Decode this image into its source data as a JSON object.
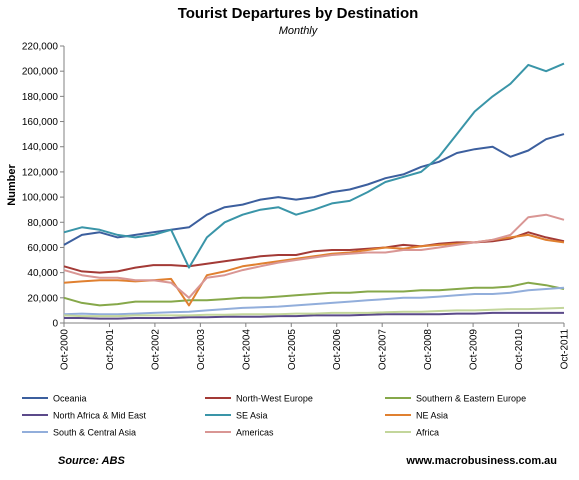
{
  "chart_data": {
    "type": "line",
    "title": "Tourist Departures by Destination",
    "subtitle": "Monthly",
    "ylabel": "Number",
    "xlabel": "",
    "ylim": [
      0,
      220000
    ],
    "y_ticks": [
      "0",
      "20,000",
      "40,000",
      "60,000",
      "80,000",
      "100,000",
      "120,000",
      "140,000",
      "160,000",
      "180,000",
      "200,000",
      "220,000"
    ],
    "x_ticks": [
      "Oct-2000",
      "Oct-2001",
      "Oct-2002",
      "Oct-2003",
      "Oct-2004",
      "Oct-2005",
      "Oct-2006",
      "Oct-2007",
      "Oct-2008",
      "Oct-2009",
      "Oct-2010",
      "Oct-2011"
    ],
    "x_start": "Oct-2000",
    "x_step": "quarter",
    "legend_position": "bottom",
    "grid": false,
    "series": [
      {
        "name": "Oceania",
        "color": "#3c5f9e",
        "values": [
          62000,
          70000,
          72000,
          68000,
          70000,
          72000,
          74000,
          76000,
          86000,
          92000,
          94000,
          98000,
          100000,
          98000,
          100000,
          104000,
          106000,
          110000,
          115000,
          118000,
          124000,
          128000,
          135000,
          138000,
          140000,
          132000,
          137000,
          146000,
          150000
        ]
      },
      {
        "name": "North-West Europe",
        "color": "#a33a36",
        "values": [
          45000,
          41000,
          40000,
          41000,
          44000,
          46000,
          46000,
          45000,
          47000,
          49000,
          51000,
          53000,
          54000,
          54000,
          57000,
          58000,
          58000,
          59000,
          60000,
          62000,
          61000,
          63000,
          64000,
          64000,
          65000,
          67000,
          72000,
          68000,
          65000
        ]
      },
      {
        "name": "Southern & Eastern Europe",
        "color": "#86a84a",
        "values": [
          20000,
          16000,
          14000,
          15000,
          17000,
          17000,
          17000,
          18000,
          18000,
          19000,
          20000,
          20000,
          21000,
          22000,
          23000,
          24000,
          24000,
          25000,
          25000,
          25000,
          26000,
          26000,
          27000,
          28000,
          28000,
          29000,
          32000,
          30000,
          27000
        ]
      },
      {
        "name": "North Africa & Mid East",
        "color": "#5b4a8a",
        "values": [
          4000,
          4000,
          3500,
          3500,
          4000,
          4000,
          4000,
          4500,
          4500,
          5000,
          5000,
          5000,
          5500,
          5500,
          6000,
          6000,
          6000,
          6500,
          7000,
          7000,
          7000,
          7000,
          7500,
          7500,
          8000,
          8000,
          8000,
          8000,
          8000
        ]
      },
      {
        "name": "SE Asia",
        "color": "#3a95a8",
        "values": [
          72000,
          76000,
          74000,
          70000,
          68000,
          70000,
          74000,
          44000,
          68000,
          80000,
          86000,
          90000,
          92000,
          86000,
          90000,
          95000,
          97000,
          104000,
          112000,
          116000,
          120000,
          132000,
          150000,
          168000,
          180000,
          190000,
          205000,
          200000,
          206000
        ]
      },
      {
        "name": "NE Asia",
        "color": "#e08030",
        "values": [
          32000,
          33000,
          34000,
          34000,
          33000,
          34000,
          35000,
          14000,
          38000,
          41000,
          45000,
          47000,
          49000,
          51000,
          53000,
          55000,
          56000,
          58000,
          60000,
          59000,
          61000,
          62000,
          63000,
          64000,
          66000,
          68000,
          70000,
          66000,
          64000
        ]
      },
      {
        "name": "South & Central Asia",
        "color": "#92aedb",
        "values": [
          7000,
          7500,
          7000,
          7000,
          7500,
          8000,
          8500,
          9000,
          10000,
          11000,
          12000,
          12500,
          13000,
          14000,
          15000,
          16000,
          17000,
          18000,
          19000,
          20000,
          20000,
          21000,
          22000,
          23000,
          23000,
          24000,
          26000,
          27000,
          28000
        ]
      },
      {
        "name": "Americas",
        "color": "#d99694",
        "values": [
          42000,
          38000,
          36000,
          36000,
          34000,
          34000,
          32000,
          20000,
          36000,
          38000,
          42000,
          45000,
          48000,
          50000,
          52000,
          54000,
          55000,
          56000,
          56000,
          58000,
          58000,
          60000,
          62000,
          64000,
          66000,
          70000,
          84000,
          86000,
          82000
        ]
      },
      {
        "name": "Africa",
        "color": "#c3d69b",
        "values": [
          6000,
          5500,
          5500,
          5500,
          6000,
          6000,
          6000,
          6000,
          6500,
          6500,
          7000,
          7000,
          7000,
          7500,
          7500,
          8000,
          8000,
          8000,
          8500,
          9000,
          9000,
          9500,
          10000,
          10000,
          10500,
          11000,
          11000,
          11500,
          12000
        ]
      }
    ]
  },
  "footer": {
    "source": "Source: ABS",
    "website": "www.macrobusiness.com.au"
  }
}
